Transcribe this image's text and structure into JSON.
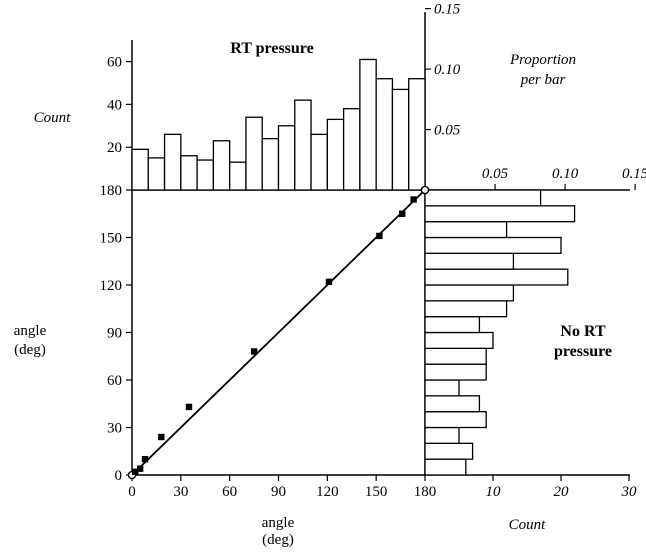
{
  "chart_data": {
    "scatter": {
      "type": "scatter",
      "xlabel": "angle\n(deg)",
      "ylabel": "angle\n(deg)",
      "xlim": [
        0,
        180
      ],
      "ylim": [
        0,
        180
      ],
      "x_ticks": [
        "0",
        "30",
        "60",
        "90",
        "120",
        "150",
        "180"
      ],
      "y_ticks": [
        "0",
        "30",
        "60",
        "90",
        "120",
        "150",
        "180"
      ],
      "points": [
        {
          "x": 0,
          "y": 0
        },
        {
          "x": 2,
          "y": 2
        },
        {
          "x": 5,
          "y": 4
        },
        {
          "x": 8,
          "y": 10
        },
        {
          "x": 18,
          "y": 24
        },
        {
          "x": 35,
          "y": 43
        },
        {
          "x": 75,
          "y": 78
        },
        {
          "x": 121,
          "y": 122
        },
        {
          "x": 152,
          "y": 151
        },
        {
          "x": 166,
          "y": 165
        },
        {
          "x": 173,
          "y": 174
        },
        {
          "x": 180,
          "y": 180
        }
      ],
      "fit_line": [
        [
          0,
          0
        ],
        [
          180,
          180
        ]
      ]
    },
    "top_histogram": {
      "type": "bar",
      "title": "RT pressure",
      "ylabel": "Count",
      "y_ticks": [
        "20",
        "40",
        "60"
      ],
      "ylim": [
        0,
        70
      ],
      "secondary_axis_label": "Proportion\nper bar",
      "secondary_ticks": [
        "0.05",
        "0.10",
        "0.15"
      ],
      "bin_width_deg": 10,
      "values": [
        19,
        15,
        26,
        16,
        14,
        23,
        13,
        34,
        24,
        30,
        42,
        26,
        33,
        38,
        61,
        52,
        47,
        52
      ]
    },
    "right_histogram": {
      "type": "bar",
      "orientation": "horizontal",
      "title": "No RT\npressure",
      "xlabel": "Count",
      "x_ticks": [
        "10",
        "20",
        "30"
      ],
      "xlim": [
        0,
        30
      ],
      "secondary_ticks": [
        "0.05",
        "0.10",
        "0.15"
      ],
      "bin_width_deg": 10,
      "values": [
        6,
        7,
        5,
        9,
        8,
        5,
        9,
        9,
        10,
        8,
        12,
        13,
        21,
        13,
        20,
        12,
        22,
        17
      ]
    }
  }
}
